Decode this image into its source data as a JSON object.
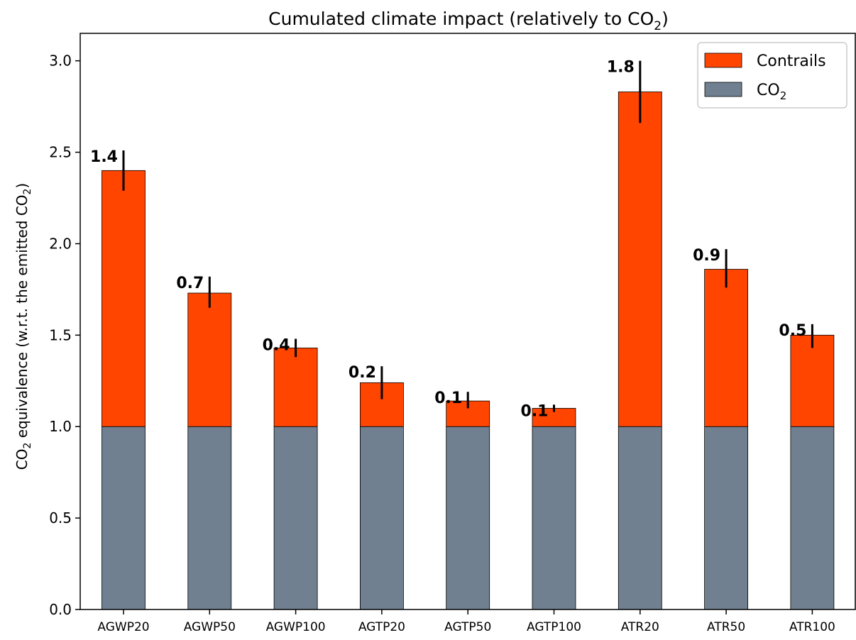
{
  "chart_data": {
    "type": "bar",
    "stacked": true,
    "title": "Cumulated climate impact (relatively to CO",
    "title_sub": "2",
    "title_end": ")",
    "ylabel": "CO",
    "ylabel_sub": "2",
    "ylabel_mid": " equivalence (w.r.t. the emitted CO",
    "ylabel_sub2": "2",
    "ylabel_end": ")",
    "ylim": [
      0,
      3.15
    ],
    "yticks": [
      "0.0",
      "0.5",
      "1.0",
      "1.5",
      "2.0",
      "2.5",
      "3.0"
    ],
    "categories": [
      "AGWP20",
      "AGWP50",
      "AGWP100",
      "AGTP20",
      "AGTP50",
      "AGTP100",
      "ATR20",
      "ATR50",
      "ATR100"
    ],
    "series": [
      {
        "name": "CO",
        "name_sub": "2",
        "color": "#708090",
        "values": [
          1,
          1,
          1,
          1,
          1,
          1,
          1,
          1,
          1
        ]
      },
      {
        "name": "Contrails",
        "color": "#ff4500",
        "values": [
          1.4,
          0.73,
          0.43,
          0.24,
          0.14,
          0.1,
          1.83,
          0.86,
          0.5
        ]
      }
    ],
    "error_low": [
      2.29,
      1.65,
      1.38,
      1.15,
      1.1,
      1.08,
      2.66,
      1.76,
      1.43
    ],
    "error_high": [
      2.51,
      1.82,
      1.48,
      1.33,
      1.19,
      1.12,
      3.0,
      1.97,
      1.56
    ],
    "data_labels": [
      "1.4",
      "0.7",
      "0.4",
      "0.2",
      "0.1",
      "0.1",
      "1.8",
      "0.9",
      "0.5"
    ],
    "legend_position": "top-right",
    "grid": false
  }
}
